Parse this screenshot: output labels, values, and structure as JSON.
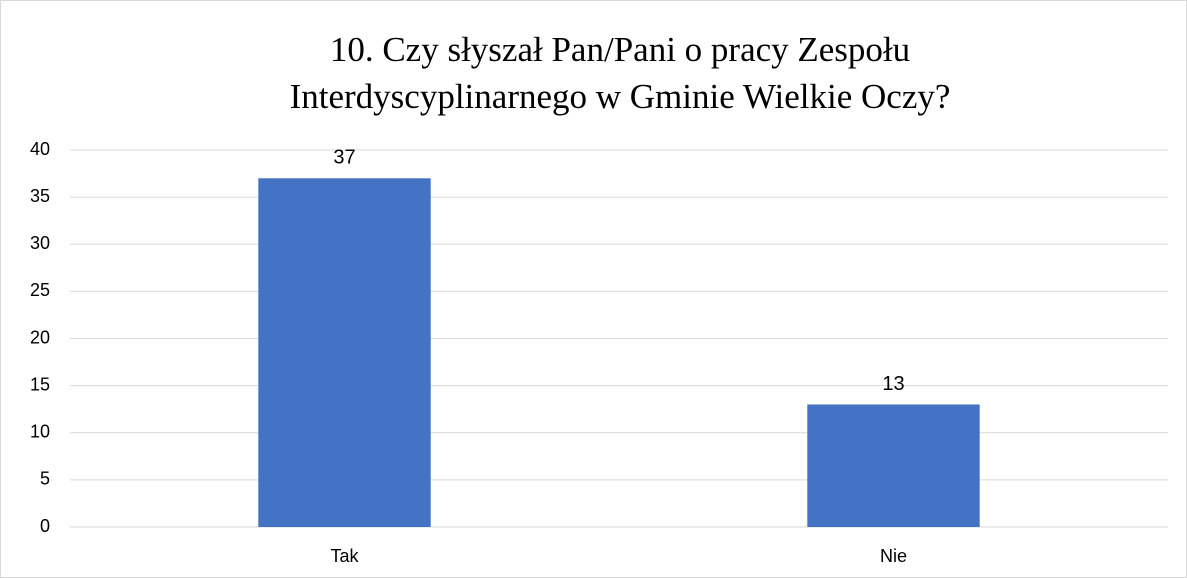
{
  "chart_data": {
    "type": "bar",
    "title": [
      "10. Czy słyszał Pan/Pani o pracy Zespołu",
      "Interdyscyplinarnego w Gminie Wielkie Oczy?"
    ],
    "categories": [
      "Tak",
      "Nie"
    ],
    "values": [
      37,
      13
    ],
    "color": "#4472c4",
    "ylim": [
      0,
      40
    ],
    "yticks": [
      0,
      5,
      10,
      15,
      20,
      25,
      30,
      35,
      40
    ],
    "grid": true
  }
}
